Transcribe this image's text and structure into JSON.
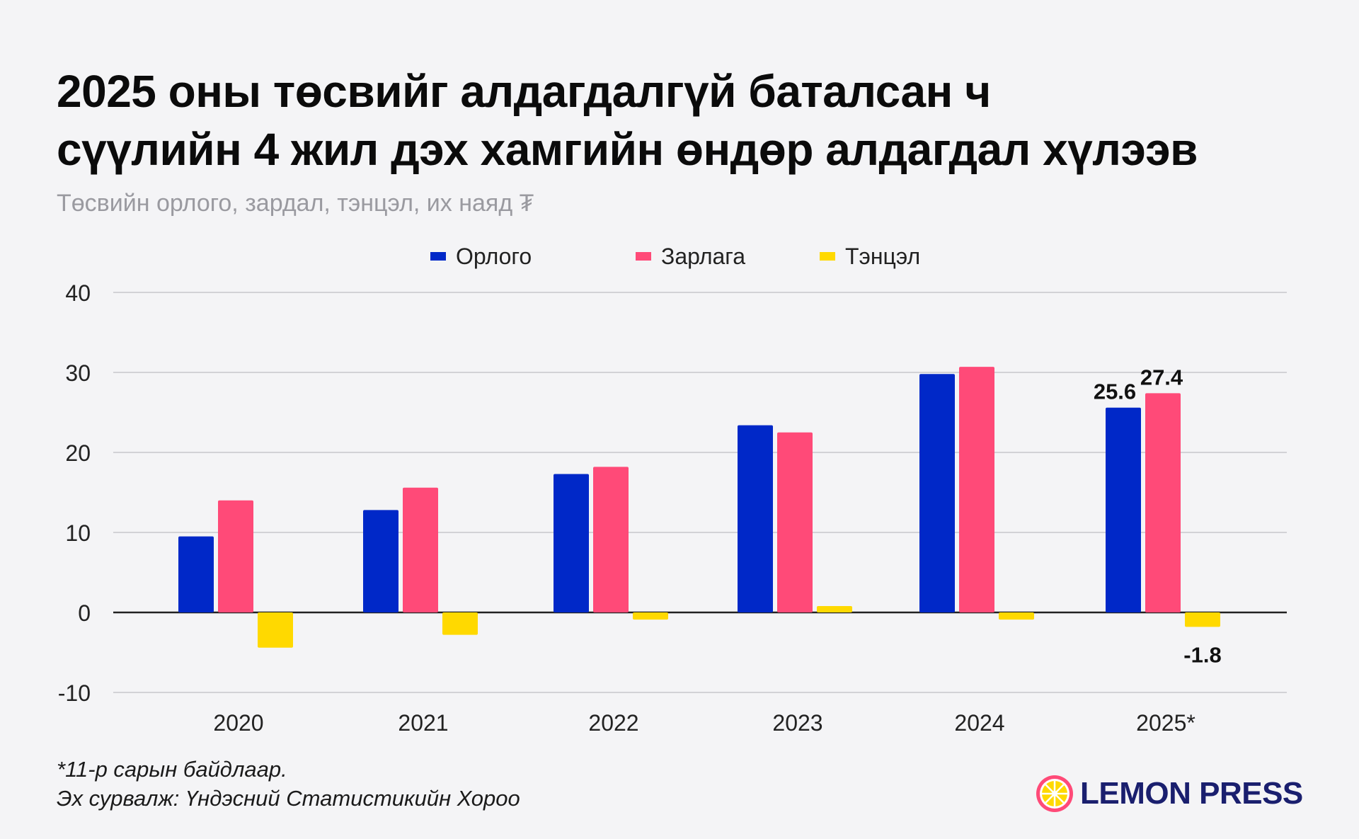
{
  "title": {
    "line1": "2025 оны төсвийг алдагдалгүй баталсан ч",
    "line2": "сүүлийн 4 жил дэх хамгийн өндөр алдагдал хүлээв"
  },
  "subtitle": "Төсвийн орлого, зардал, тэнцэл, их наяд ₮",
  "colors": {
    "income": "#0028c8",
    "expense": "#ff4a78",
    "balance": "#ffd900",
    "grid": "#d2d2d6",
    "axis": "#222222",
    "logo_text": "#1a1f6e"
  },
  "chart_data": {
    "type": "bar",
    "categories": [
      "2020",
      "2021",
      "2022",
      "2023",
      "2024",
      "2025*"
    ],
    "series": [
      {
        "name": "Орлого",
        "values": [
          9.5,
          12.8,
          17.3,
          23.4,
          29.8,
          25.6
        ]
      },
      {
        "name": "Зарлага",
        "values": [
          14.0,
          15.6,
          18.2,
          22.5,
          30.7,
          27.4
        ]
      },
      {
        "name": "Тэнцэл",
        "values": [
          -4.4,
          -2.8,
          -0.9,
          0.8,
          -0.9,
          -1.8
        ]
      }
    ],
    "yticks": [
      "40",
      "30",
      "20",
      "10",
      "0",
      "-10"
    ],
    "ylim": [
      -10,
      40
    ],
    "grid": true,
    "legend_position": "top-center",
    "data_labels": [
      {
        "category": "2025*",
        "series": "Орлого",
        "text": "25.6"
      },
      {
        "category": "2025*",
        "series": "Зарлага",
        "text": "27.4"
      },
      {
        "category": "2025*",
        "series": "Тэнцэл",
        "text": "-1.8"
      }
    ]
  },
  "footnote": {
    "line1": "*11-р сарын байдлаар.",
    "line2": "Эх сурвалж: Үндэсний Статистикийн Хороо"
  },
  "logo": {
    "text": "LEMON PRESS",
    "icon": "lemon-slice-icon"
  }
}
